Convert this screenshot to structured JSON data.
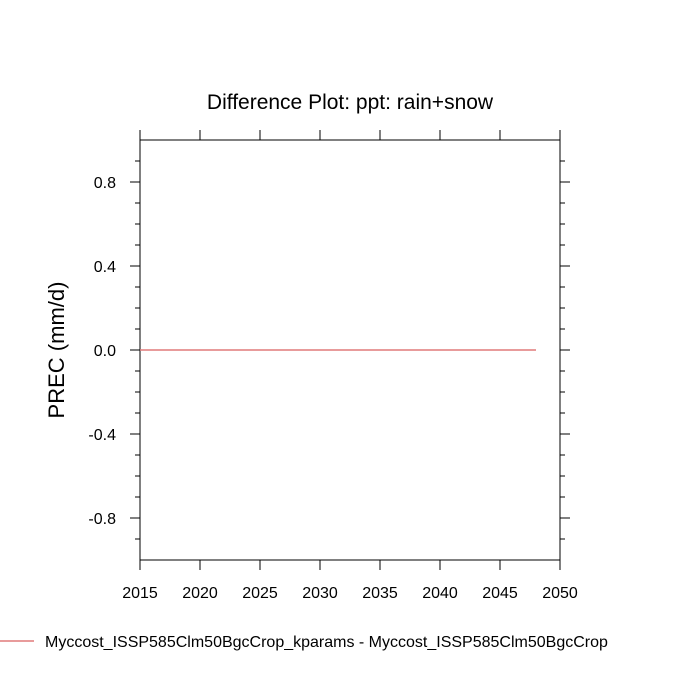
{
  "chart_data": {
    "type": "line",
    "title": "Difference Plot: ppt: rain+snow",
    "xlabel": "",
    "ylabel": "PREC  (mm/d)",
    "xlim": [
      2015,
      2050
    ],
    "ylim": [
      -1.0,
      1.0
    ],
    "x_ticks": [
      2015,
      2020,
      2025,
      2030,
      2035,
      2040,
      2045,
      2050
    ],
    "x_tick_labels": [
      "2015",
      "2020",
      "2025",
      "2030",
      "2035",
      "2040",
      "2045",
      "2050"
    ],
    "y_ticks": [
      0.8,
      0.4,
      0.0,
      -0.4,
      -0.8
    ],
    "y_tick_labels": [
      "0.8",
      "0.4",
      "0.0",
      "-0.4",
      "-0.8"
    ],
    "grid": false,
    "legend_position": "bottom",
    "series": [
      {
        "name": "Myccost_ISSP585Clm50BgcCrop_kparams - Myccost_ISSP585Clm50BgcCrop",
        "color": "#e07a7a",
        "x": [
          2015,
          2048
        ],
        "y": [
          0.0,
          0.0
        ]
      }
    ]
  }
}
